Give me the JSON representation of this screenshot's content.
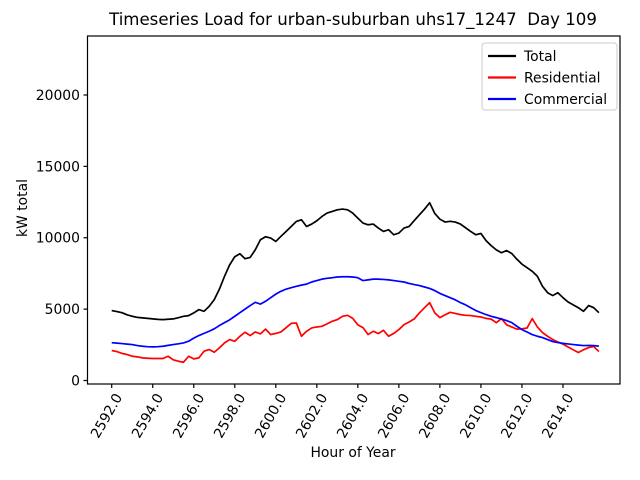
{
  "figure": {
    "background": "#ffffff",
    "text_color": "#000000",
    "spine_color": "#000000",
    "legend_border_color": "#cccccc"
  },
  "chart_data": {
    "type": "line",
    "title": "Timeseries Load for urban-suburban uhs17_1247  Day 109",
    "xlabel": "Hour of Year",
    "ylabel": "kW total",
    "grid": false,
    "xlim": [
      2590.82,
      2616.78
    ],
    "ylim": [
      -245,
      24132
    ],
    "x_ticks": [
      2592,
      2594,
      2596,
      2598,
      2600,
      2602,
      2604,
      2606,
      2608,
      2610,
      2612,
      2614
    ],
    "x_tick_labels": [
      "2592.0",
      "2594.0",
      "2596.0",
      "2598.0",
      "2600.0",
      "2602.0",
      "2604.0",
      "2606.0",
      "2608.0",
      "2610.0",
      "2612.0",
      "2614.0"
    ],
    "x_tick_rotation_deg": 60,
    "y_ticks": [
      0,
      5000,
      10000,
      15000,
      20000
    ],
    "y_tick_labels": [
      "0",
      "5000",
      "10000",
      "15000",
      "20000"
    ],
    "legend": {
      "position": "upper right",
      "entries": [
        {
          "label": "Total",
          "color": "#000000"
        },
        {
          "label": "Residential",
          "color": "#ff0000"
        },
        {
          "label": "Commercial",
          "color": "#0000ff"
        }
      ]
    },
    "x": [
      2592.0,
      2592.25,
      2592.5,
      2592.75,
      2593.0,
      2593.25,
      2593.5,
      2593.75,
      2594.0,
      2594.25,
      2594.5,
      2594.75,
      2595.0,
      2595.25,
      2595.5,
      2595.75,
      2596.0,
      2596.25,
      2596.5,
      2596.75,
      2597.0,
      2597.25,
      2597.5,
      2597.75,
      2598.0,
      2598.25,
      2598.5,
      2598.75,
      2599.0,
      2599.25,
      2599.5,
      2599.75,
      2600.0,
      2600.25,
      2600.5,
      2600.75,
      2601.0,
      2601.25,
      2601.5,
      2601.75,
      2602.0,
      2602.25,
      2602.5,
      2602.75,
      2603.0,
      2603.25,
      2603.5,
      2603.75,
      2604.0,
      2604.25,
      2604.5,
      2604.75,
      2605.0,
      2605.25,
      2605.5,
      2605.75,
      2606.0,
      2606.25,
      2606.5,
      2606.75,
      2607.0,
      2607.25,
      2607.5,
      2607.75,
      2608.0,
      2608.25,
      2608.5,
      2608.75,
      2609.0,
      2609.25,
      2609.5,
      2609.75,
      2610.0,
      2610.25,
      2610.5,
      2610.75,
      2611.0,
      2611.25,
      2611.5,
      2611.75,
      2612.0,
      2612.25,
      2612.5,
      2612.75,
      2613.0,
      2613.25,
      2613.5,
      2613.75,
      2614.0,
      2614.25,
      2614.5,
      2614.75,
      2615.0,
      2615.25,
      2615.5,
      2615.75
    ],
    "series": [
      {
        "name": "Total",
        "color": "#000000",
        "values": [
          4900,
          4830,
          4750,
          4600,
          4500,
          4420,
          4385,
          4350,
          4315,
          4280,
          4266,
          4290,
          4315,
          4400,
          4496,
          4545,
          4734,
          4965,
          4846,
          5196,
          5664,
          6400,
          7300,
          8100,
          8671,
          8881,
          8531,
          8622,
          9161,
          9860,
          10070,
          9979,
          9742,
          10100,
          10441,
          10790,
          11140,
          11258,
          10790,
          10958,
          11189,
          11490,
          11727,
          11839,
          11958,
          12007,
          11958,
          11727,
          11377,
          11028,
          10909,
          10958,
          10678,
          10441,
          10560,
          10210,
          10329,
          10678,
          10790,
          11200,
          11608,
          12000,
          12450,
          11700,
          11300,
          11100,
          11150,
          11100,
          10958,
          10700,
          10441,
          10210,
          10300,
          9800,
          9450,
          9150,
          8950,
          9100,
          8900,
          8500,
          8150,
          7900,
          7650,
          7300,
          6600,
          6150,
          5950,
          6150,
          5800,
          5500,
          5300,
          5100,
          4850,
          5250,
          5100,
          4750
        ]
      },
      {
        "name": "Residential",
        "color": "#ff0000",
        "values": [
          2100,
          2028,
          1900,
          1818,
          1700,
          1657,
          1585,
          1560,
          1540,
          1540,
          1540,
          1699,
          1450,
          1350,
          1280,
          1699,
          1515,
          1585,
          2051,
          2168,
          1981,
          2284,
          2634,
          2867,
          2749,
          3098,
          3380,
          3147,
          3400,
          3265,
          3600,
          3217,
          3300,
          3400,
          3700,
          4000,
          4033,
          3100,
          3448,
          3685,
          3750,
          3797,
          3965,
          4150,
          4266,
          4496,
          4566,
          4350,
          3900,
          3700,
          3217,
          3448,
          3287,
          3517,
          3098,
          3300,
          3566,
          3916,
          4100,
          4315,
          4734,
          5100,
          5455,
          4734,
          4405,
          4600,
          4776,
          4700,
          4615,
          4566,
          4550,
          4496,
          4450,
          4350,
          4300,
          4050,
          4336,
          3900,
          3750,
          3600,
          3620,
          3678,
          4336,
          3750,
          3357,
          3100,
          2867,
          2700,
          2550,
          2350,
          2150,
          1958,
          2150,
          2308,
          2378,
          2028
        ]
      },
      {
        "name": "Commercial",
        "color": "#0000ff",
        "values": [
          2650,
          2620,
          2587,
          2550,
          2517,
          2450,
          2400,
          2370,
          2355,
          2370,
          2400,
          2460,
          2517,
          2570,
          2634,
          2750,
          2970,
          3150,
          3300,
          3450,
          3620,
          3850,
          4056,
          4250,
          4500,
          4750,
          5000,
          5250,
          5476,
          5350,
          5550,
          5800,
          6050,
          6250,
          6400,
          6500,
          6600,
          6680,
          6750,
          6900,
          7000,
          7100,
          7160,
          7200,
          7250,
          7270,
          7270,
          7250,
          7200,
          7000,
          7050,
          7100,
          7100,
          7080,
          7050,
          7000,
          6950,
          6900,
          6800,
          6720,
          6650,
          6550,
          6450,
          6300,
          6100,
          5950,
          5800,
          5650,
          5455,
          5300,
          5100,
          4900,
          4755,
          4615,
          4500,
          4405,
          4300,
          4200,
          4056,
          3800,
          3566,
          3400,
          3217,
          3100,
          3007,
          2867,
          2727,
          2657,
          2600,
          2560,
          2517,
          2480,
          2447,
          2450,
          2447,
          2408
        ]
      }
    ]
  }
}
